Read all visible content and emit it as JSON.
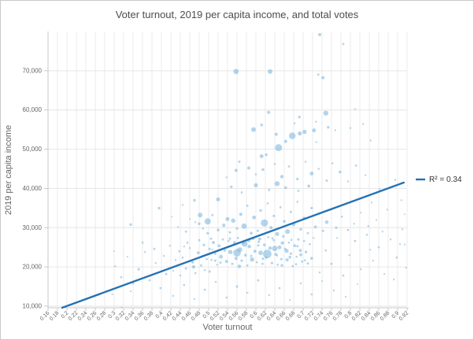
{
  "chart": {
    "title": "Voter turnout, 2019 per capita income, and total votes",
    "x_axis": {
      "title": "Voter turnout",
      "tick_labels": [
        "0.16",
        "0.18",
        "0.2",
        "0.22",
        "0.24",
        "0.26",
        "0.28",
        "0.3",
        "0.32",
        "0.34",
        "0.36",
        "0.38",
        "0.4",
        "0.42",
        "0.44",
        "0.46",
        "0.48",
        "0.5",
        "0.52",
        "0.54",
        "0.56",
        "0.58",
        "0.6",
        "0.62",
        "0.64",
        "0.66",
        "0.68",
        "0.7",
        "0.72",
        "0.74",
        "0.76",
        "0.78",
        "0.8",
        "0.82",
        "0.84",
        "0.86",
        "0.88",
        "0.9",
        "0.92"
      ]
    },
    "y_axis": {
      "title": "2019 per capita income",
      "tick_labels": [
        "10,000",
        "20,000",
        "30,000",
        "40,000",
        "50,000",
        "60,000",
        "70,000"
      ],
      "tick_values": [
        10000,
        20000,
        30000,
        40000,
        50000,
        60000,
        70000
      ]
    },
    "legend": {
      "label": "R² = 0.34"
    },
    "colors": {
      "title_text": "#4d4d4d",
      "axis_title_text": "#666666",
      "tick_text": "#666666",
      "legend_text": "#333333",
      "grid_vertical": "#ebebeb",
      "grid_horizontal": "#e6e6e6",
      "axis_line": "#c8c8c8",
      "bubble_fill": "#75b2dd",
      "trend_line": "#2471b5"
    }
  },
  "chart_data": {
    "type": "scatter",
    "title": "Voter turnout, 2019 per capita income, and total votes",
    "xlabel": "Voter turnout",
    "ylabel": "2019 per capita income",
    "x_range": [
      0.16,
      0.92
    ],
    "y_range": [
      9600,
      80000
    ],
    "grid": true,
    "legend_position": "right",
    "trendline": {
      "x1": 0.19,
      "y1": 9600,
      "x2": 0.913,
      "y2": 41500,
      "r_squared": 0.34,
      "label": "R² = 0.34"
    },
    "points": [
      [
        0.558,
        69800,
        3.4
      ],
      [
        0.63,
        69800,
        3.0
      ],
      [
        0.735,
        79200,
        2.0
      ],
      [
        0.785,
        76800,
        1.4
      ],
      [
        0.732,
        69000,
        1.4
      ],
      [
        0.742,
        68200,
        2.0
      ],
      [
        0.627,
        59400,
        2.0
      ],
      [
        0.748,
        59200,
        3.2
      ],
      [
        0.81,
        60200,
        1.2
      ],
      [
        0.692,
        58200,
        1.7
      ],
      [
        0.595,
        55000,
        3.0
      ],
      [
        0.612,
        56200,
        1.7
      ],
      [
        0.682,
        56600,
        1.2
      ],
      [
        0.727,
        57000,
        1.2
      ],
      [
        0.643,
        53800,
        2.0
      ],
      [
        0.663,
        52000,
        2.0
      ],
      [
        0.677,
        53400,
        4.2
      ],
      [
        0.693,
        54000,
        2.7
      ],
      [
        0.703,
        54400,
        2.7
      ],
      [
        0.723,
        54800,
        2.5
      ],
      [
        0.753,
        55600,
        1.7
      ],
      [
        0.768,
        54800,
        1.2
      ],
      [
        0.8,
        55400,
        1.2
      ],
      [
        0.827,
        56400,
        1.2
      ],
      [
        0.843,
        52200,
        1.2
      ],
      [
        0.728,
        51800,
        1.2
      ],
      [
        0.648,
        50400,
        4.5
      ],
      [
        0.612,
        48200,
        2.5
      ],
      [
        0.622,
        48600,
        1.7
      ],
      [
        0.558,
        44600,
        2.0
      ],
      [
        0.395,
        35000,
        1.7
      ],
      [
        0.445,
        35800,
        1.2
      ],
      [
        0.47,
        37000,
        1.7
      ],
      [
        0.52,
        37200,
        2.5
      ],
      [
        0.538,
        42800,
        1.2
      ],
      [
        0.54,
        32200,
        2.5
      ],
      [
        0.482,
        33200,
        3.0
      ],
      [
        0.48,
        31000,
        1.7
      ],
      [
        0.498,
        31600,
        4.0
      ],
      [
        0.335,
        30800,
        1.7
      ],
      [
        0.422,
        32800,
        1.0
      ],
      [
        0.46,
        32200,
        1.0
      ],
      [
        0.316,
        9700,
        0.9
      ],
      [
        0.296,
        13000,
        1.1
      ],
      [
        0.565,
        46800,
        1.5
      ],
      [
        0.585,
        45200,
        2.0
      ],
      [
        0.6,
        43600,
        1.3
      ],
      [
        0.615,
        44800,
        1.8
      ],
      [
        0.64,
        46200,
        1.2
      ],
      [
        0.655,
        43000,
        2.2
      ],
      [
        0.67,
        45600,
        1.4
      ],
      [
        0.688,
        42400,
        1.6
      ],
      [
        0.705,
        46800,
        1.2
      ],
      [
        0.718,
        43800,
        2.4
      ],
      [
        0.733,
        45000,
        1.3
      ],
      [
        0.75,
        42000,
        1.5
      ],
      [
        0.762,
        46400,
        1.2
      ],
      [
        0.778,
        44200,
        1.8
      ],
      [
        0.795,
        41800,
        1.2
      ],
      [
        0.812,
        45800,
        1.4
      ],
      [
        0.6,
        40800,
        2.6
      ],
      [
        0.628,
        39600,
        1.5
      ],
      [
        0.645,
        41200,
        3.2
      ],
      [
        0.663,
        40200,
        1.8
      ],
      [
        0.69,
        39400,
        1.4
      ],
      [
        0.712,
        40600,
        1.9
      ],
      [
        0.57,
        39000,
        1.3
      ],
      [
        0.548,
        40400,
        1.6
      ],
      [
        0.832,
        43400,
        1.2
      ],
      [
        0.52,
        29400,
        1.8
      ],
      [
        0.532,
        30600,
        2.2
      ],
      [
        0.545,
        28800,
        1.5
      ],
      [
        0.552,
        31800,
        2.8
      ],
      [
        0.56,
        29800,
        1.6
      ],
      [
        0.568,
        33400,
        2.1
      ],
      [
        0.575,
        30400,
        3.4
      ],
      [
        0.582,
        35600,
        1.4
      ],
      [
        0.59,
        28600,
        1.9
      ],
      [
        0.596,
        32600,
        2.4
      ],
      [
        0.604,
        29200,
        1.5
      ],
      [
        0.61,
        34400,
        1.7
      ],
      [
        0.618,
        31200,
        4.6
      ],
      [
        0.625,
        36200,
        1.3
      ],
      [
        0.632,
        30000,
        2.0
      ],
      [
        0.638,
        33000,
        1.6
      ],
      [
        0.645,
        28400,
        2.6
      ],
      [
        0.652,
        35200,
        1.4
      ],
      [
        0.66,
        31600,
        1.8
      ],
      [
        0.667,
        29000,
        3.0
      ],
      [
        0.674,
        34000,
        1.5
      ],
      [
        0.68,
        30800,
        2.2
      ],
      [
        0.688,
        36600,
        1.3
      ],
      [
        0.695,
        29600,
        1.7
      ],
      [
        0.702,
        32400,
        2.0
      ],
      [
        0.71,
        28600,
        1.4
      ],
      [
        0.718,
        35000,
        1.6
      ],
      [
        0.726,
        30200,
        1.9
      ],
      [
        0.734,
        33600,
        1.3
      ],
      [
        0.742,
        29200,
        1.5
      ],
      [
        0.75,
        31400,
        2.3
      ],
      [
        0.76,
        34600,
        1.2
      ],
      [
        0.77,
        30000,
        1.6
      ],
      [
        0.782,
        32800,
        1.3
      ],
      [
        0.795,
        29400,
        1.4
      ],
      [
        0.808,
        31000,
        1.2
      ],
      [
        0.822,
        33800,
        1.1
      ],
      [
        0.838,
        30400,
        1.3
      ],
      [
        0.855,
        32000,
        1.1
      ],
      [
        0.498,
        28600,
        1.6
      ],
      [
        0.508,
        33200,
        1.4
      ],
      [
        0.488,
        29800,
        1.3
      ],
      [
        0.472,
        31400,
        1.2
      ],
      [
        0.452,
        29000,
        1.4
      ],
      [
        0.435,
        30200,
        1.1
      ],
      [
        0.502,
        24600,
        1.6
      ],
      [
        0.506,
        21800,
        1.3
      ],
      [
        0.51,
        26200,
        2.1
      ],
      [
        0.514,
        23400,
        1.5
      ],
      [
        0.518,
        20600,
        1.2
      ],
      [
        0.522,
        25400,
        1.8
      ],
      [
        0.526,
        22600,
        2.4
      ],
      [
        0.53,
        27000,
        1.4
      ],
      [
        0.534,
        24200,
        1.6
      ],
      [
        0.538,
        21400,
        1.9
      ],
      [
        0.542,
        26600,
        1.3
      ],
      [
        0.546,
        23800,
        2.7
      ],
      [
        0.55,
        20800,
        1.5
      ],
      [
        0.554,
        25800,
        1.7
      ],
      [
        0.558,
        22200,
        2.0
      ],
      [
        0.562,
        27400,
        1.4
      ],
      [
        0.566,
        24400,
        3.1
      ],
      [
        0.57,
        21600,
        1.6
      ],
      [
        0.574,
        26000,
        1.3
      ],
      [
        0.578,
        23000,
        1.8
      ],
      [
        0.582,
        20400,
        1.4
      ],
      [
        0.586,
        25200,
        2.3
      ],
      [
        0.59,
        22800,
        1.5
      ],
      [
        0.594,
        27200,
        1.7
      ],
      [
        0.598,
        24000,
        2.0
      ],
      [
        0.602,
        21200,
        1.3
      ],
      [
        0.606,
        26400,
        1.6
      ],
      [
        0.61,
        23600,
        2.9
      ],
      [
        0.614,
        20800,
        1.4
      ],
      [
        0.618,
        25600,
        1.8
      ],
      [
        0.622,
        22400,
        1.5
      ],
      [
        0.626,
        27600,
        1.3
      ],
      [
        0.63,
        24800,
        2.2
      ],
      [
        0.634,
        21000,
        1.6
      ],
      [
        0.638,
        26800,
        1.4
      ],
      [
        0.642,
        23200,
        1.9
      ],
      [
        0.646,
        20600,
        1.3
      ],
      [
        0.65,
        25000,
        2.5
      ],
      [
        0.654,
        22000,
        1.5
      ],
      [
        0.658,
        27800,
        1.7
      ],
      [
        0.662,
        24600,
        1.4
      ],
      [
        0.666,
        21800,
        2.1
      ],
      [
        0.67,
        26200,
        1.3
      ],
      [
        0.674,
        23400,
        1.6
      ],
      [
        0.678,
        20200,
        1.4
      ],
      [
        0.682,
        25400,
        1.8
      ],
      [
        0.686,
        22600,
        1.3
      ],
      [
        0.69,
        27000,
        1.5
      ],
      [
        0.694,
        24200,
        2.0
      ],
      [
        0.698,
        21400,
        1.4
      ],
      [
        0.702,
        26600,
        1.3
      ],
      [
        0.706,
        23800,
        1.7
      ],
      [
        0.71,
        20900,
        1.5
      ],
      [
        0.714,
        25800,
        1.3
      ],
      [
        0.718,
        22200,
        1.8
      ],
      [
        0.722,
        27400,
        1.2
      ],
      [
        0.56,
        23600,
        4.8
      ],
      [
        0.576,
        25900,
        3.8
      ],
      [
        0.592,
        21900,
        2.8
      ],
      [
        0.608,
        27100,
        1.9
      ],
      [
        0.624,
        23300,
        5.4
      ],
      [
        0.64,
        24700,
        3.5
      ],
      [
        0.656,
        26100,
        2.2
      ],
      [
        0.672,
        22500,
        1.8
      ],
      [
        0.688,
        25300,
        1.5
      ],
      [
        0.704,
        21700,
        1.3
      ],
      [
        0.545,
        27200,
        1.5
      ],
      [
        0.585,
        26700,
        2.1
      ],
      [
        0.615,
        22100,
        1.6
      ],
      [
        0.635,
        27300,
        1.4
      ],
      [
        0.655,
        20400,
        1.7
      ],
      [
        0.675,
        26900,
        1.3
      ],
      [
        0.695,
        23100,
        1.9
      ],
      [
        0.525,
        21100,
        1.4
      ],
      [
        0.555,
        26300,
        1.6
      ],
      [
        0.565,
        20150,
        2.3
      ],
      [
        0.605,
        25500,
        1.5
      ],
      [
        0.645,
        22900,
        1.2
      ],
      [
        0.665,
        24100,
        2.6
      ],
      [
        0.685,
        20700,
        1.4
      ],
      [
        0.445,
        22400,
        1.3
      ],
      [
        0.452,
        19600,
        1.5
      ],
      [
        0.46,
        24800,
        1.2
      ],
      [
        0.466,
        21200,
        1.7
      ],
      [
        0.472,
        18400,
        1.3
      ],
      [
        0.478,
        23600,
        1.9
      ],
      [
        0.484,
        20400,
        1.4
      ],
      [
        0.49,
        25600,
        1.6
      ],
      [
        0.496,
        22000,
        1.3
      ],
      [
        0.502,
        18800,
        1.5
      ],
      [
        0.508,
        24400,
        1.2
      ],
      [
        0.514,
        21600,
        1.4
      ],
      [
        0.44,
        17800,
        1.2
      ],
      [
        0.455,
        26200,
        1.3
      ],
      [
        0.468,
        20000,
        2.2
      ],
      [
        0.48,
        26800,
        1.4
      ],
      [
        0.492,
        19200,
        1.3
      ],
      [
        0.505,
        27200,
        1.5
      ],
      [
        0.43,
        21800,
        1.2
      ],
      [
        0.438,
        24000,
        1.4
      ],
      [
        0.425,
        19000,
        1.1
      ],
      [
        0.448,
        25200,
        1.2
      ],
      [
        0.302,
        20200,
        1.2
      ],
      [
        0.315,
        17400,
        1.4
      ],
      [
        0.328,
        22600,
        1.1
      ],
      [
        0.34,
        15800,
        1.3
      ],
      [
        0.352,
        19400,
        1.6
      ],
      [
        0.365,
        23800,
        1.2
      ],
      [
        0.375,
        16600,
        1.4
      ],
      [
        0.388,
        21000,
        1.2
      ],
      [
        0.398,
        14600,
        1.3
      ],
      [
        0.41,
        18200,
        1.5
      ],
      [
        0.418,
        25400,
        1.2
      ],
      [
        0.335,
        13800,
        1.1
      ],
      [
        0.36,
        26200,
        1.3
      ],
      [
        0.385,
        24600,
        1.4
      ],
      [
        0.405,
        22800,
        1.2
      ],
      [
        0.3,
        24000,
        1.0
      ],
      [
        0.425,
        12600,
        1.2
      ],
      [
        0.448,
        15400,
        1.3
      ],
      [
        0.47,
        11800,
        1.1
      ],
      [
        0.492,
        14200,
        1.4
      ],
      [
        0.515,
        16200,
        1.2
      ],
      [
        0.538,
        12200,
        1.3
      ],
      [
        0.56,
        15000,
        1.5
      ],
      [
        0.582,
        13400,
        1.2
      ],
      [
        0.605,
        16600,
        1.4
      ],
      [
        0.628,
        12800,
        1.2
      ],
      [
        0.65,
        14600,
        1.3
      ],
      [
        0.672,
        11600,
        1.1
      ],
      [
        0.695,
        15800,
        1.2
      ],
      [
        0.718,
        13000,
        1.3
      ],
      [
        0.74,
        16400,
        1.1
      ],
      [
        0.765,
        14000,
        1.2
      ],
      [
        0.79,
        12400,
        1.1
      ],
      [
        0.815,
        15600,
        1.0
      ],
      [
        0.735,
        18600,
        1.2
      ],
      [
        0.748,
        24200,
        1.3
      ],
      [
        0.76,
        20800,
        1.4
      ],
      [
        0.772,
        27400,
        1.2
      ],
      [
        0.785,
        17800,
        1.3
      ],
      [
        0.798,
        23000,
        1.2
      ],
      [
        0.81,
        26600,
        1.4
      ],
      [
        0.822,
        19400,
        1.2
      ],
      [
        0.835,
        28200,
        1.3
      ],
      [
        0.848,
        21600,
        1.2
      ],
      [
        0.86,
        25000,
        1.3
      ],
      [
        0.872,
        18200,
        1.1
      ],
      [
        0.885,
        27000,
        1.2
      ],
      [
        0.898,
        22400,
        1.3
      ],
      [
        0.91,
        29600,
        1.2
      ],
      [
        0.918,
        19800,
        1.1
      ],
      [
        0.842,
        24400,
        1.1
      ],
      [
        0.868,
        29000,
        1.2
      ],
      [
        0.892,
        16800,
        1.1
      ],
      [
        0.905,
        25800,
        1.2
      ],
      [
        0.915,
        25700,
        1.1
      ],
      [
        0.845,
        36400,
        1.1
      ],
      [
        0.862,
        39800,
        1.2
      ],
      [
        0.878,
        34600,
        1.1
      ],
      [
        0.895,
        42200,
        1.2
      ],
      [
        0.908,
        37000,
        1.1
      ],
      [
        0.915,
        33400,
        1.0
      ]
    ]
  }
}
